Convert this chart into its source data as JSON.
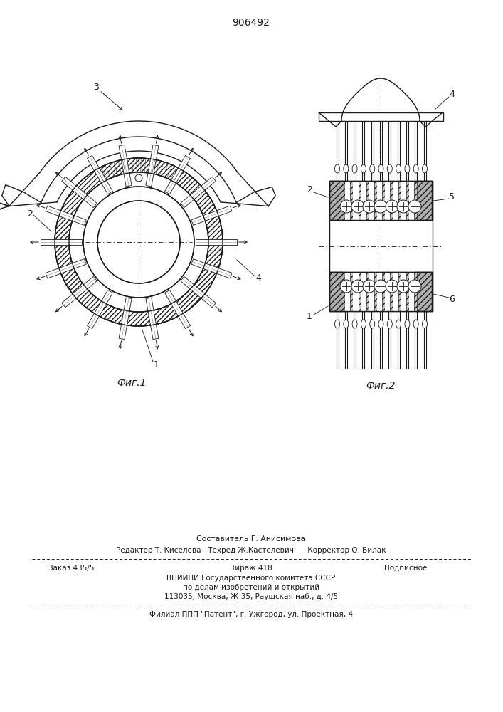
{
  "patent_number": "906492",
  "fig1_label": "Фиг.1",
  "fig2_label": "Фиг.2",
  "footer_line1": "Составитель Г. Анисимова",
  "footer_line2": "Редактор Т. Киселева   Техред Ж.Кастелевич      Корректор О. Билак",
  "footer_line3a": "Заказ 435/5",
  "footer_line3b": "Тираж 418",
  "footer_line3c": "Подписное",
  "footer_line4": "ВНИИПИ Государственного комитета СССР",
  "footer_line5": "по делам изобретений и открытий",
  "footer_line6": "113035, Москва, Ж-35, Раушская наб., д. 4/5",
  "footer_line7": "Филиал ППП \"Патент\", г. Ужгород, ул. Проектная, 4",
  "bg_color": "#ffffff",
  "line_color": "#1a1a1a"
}
